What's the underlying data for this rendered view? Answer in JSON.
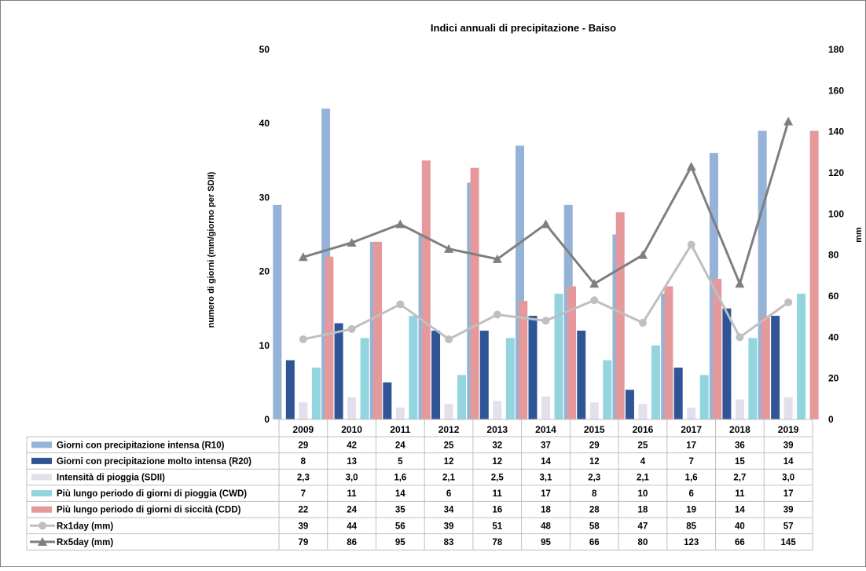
{
  "chart_data": {
    "type": "bar",
    "title": "Indici annuali di precipitazione - Baiso",
    "ylabel_left": "numero di giorni (mm/giorno per SDII)",
    "ylabel_right": "mm",
    "ylim_left": [
      0,
      50
    ],
    "ylim_right": [
      0,
      180
    ],
    "yticks_left": [
      "0",
      "10",
      "20",
      "30",
      "40",
      "50"
    ],
    "yticks_right": [
      "0",
      "20",
      "40",
      "60",
      "80",
      "100",
      "120",
      "140",
      "160",
      "180"
    ],
    "categories": [
      "2009",
      "2010",
      "2011",
      "2012",
      "2013",
      "2014",
      "2015",
      "2016",
      "2017",
      "2018",
      "2019"
    ],
    "grid": false,
    "legend": "data table below chart",
    "series": [
      {
        "name": "Giorni con precipitazione intensa (R10)",
        "kind": "bar",
        "axis": "left",
        "color": "#95b3d7",
        "values": [
          29,
          42,
          24,
          25,
          32,
          37,
          29,
          25,
          17,
          36,
          39
        ],
        "labels": [
          "29",
          "42",
          "24",
          "25",
          "32",
          "37",
          "29",
          "25",
          "17",
          "36",
          "39"
        ]
      },
      {
        "name": "Giorni con precipitazione molto intensa (R20)",
        "kind": "bar",
        "axis": "left",
        "color": "#2f5597",
        "values": [
          8,
          13,
          5,
          12,
          12,
          14,
          12,
          4,
          7,
          15,
          14
        ],
        "labels": [
          "8",
          "13",
          "5",
          "12",
          "12",
          "14",
          "12",
          "4",
          "7",
          "15",
          "14"
        ]
      },
      {
        "name": "Intensità di pioggia (SDII)",
        "kind": "bar",
        "axis": "left",
        "color": "#e4dfec",
        "values": [
          2.3,
          3.0,
          1.6,
          2.1,
          2.5,
          3.1,
          2.3,
          2.1,
          1.6,
          2.7,
          3.0
        ],
        "labels": [
          "2,3",
          "3,0",
          "1,6",
          "2,1",
          "2,5",
          "3,1",
          "2,3",
          "2,1",
          "1,6",
          "2,7",
          "3,0"
        ]
      },
      {
        "name": "Più lungo periodo di giorni di pioggia (CWD)",
        "kind": "bar",
        "axis": "left",
        "color": "#92d5df",
        "values": [
          7,
          11,
          14,
          6,
          11,
          17,
          8,
          10,
          6,
          11,
          17
        ],
        "labels": [
          "7",
          "11",
          "14",
          "6",
          "11",
          "17",
          "8",
          "10",
          "6",
          "11",
          "17"
        ]
      },
      {
        "name": "Più lungo periodo di giorni di siccità (CDD)",
        "kind": "bar",
        "axis": "left",
        "color": "#e6999b",
        "values": [
          22,
          24,
          35,
          34,
          16,
          18,
          28,
          18,
          19,
          14,
          39
        ],
        "labels": [
          "22",
          "24",
          "35",
          "34",
          "16",
          "18",
          "28",
          "18",
          "19",
          "14",
          "39"
        ]
      },
      {
        "name": "Rx1day (mm)",
        "kind": "line",
        "marker": "circle",
        "axis": "right",
        "color": "#bfbfbf",
        "values": [
          39,
          44,
          56,
          39,
          51,
          48,
          58,
          47,
          85,
          40,
          57
        ],
        "labels": [
          "39",
          "44",
          "56",
          "39",
          "51",
          "48",
          "58",
          "47",
          "85",
          "40",
          "57"
        ]
      },
      {
        "name": "Rx5day (mm)",
        "kind": "line",
        "marker": "triangle",
        "axis": "right",
        "color": "#7f7f7f",
        "values": [
          79,
          86,
          95,
          83,
          78,
          95,
          66,
          80,
          123,
          66,
          145
        ],
        "labels": [
          "79",
          "86",
          "95",
          "83",
          "78",
          "95",
          "66",
          "80",
          "123",
          "66",
          "145"
        ]
      }
    ]
  }
}
